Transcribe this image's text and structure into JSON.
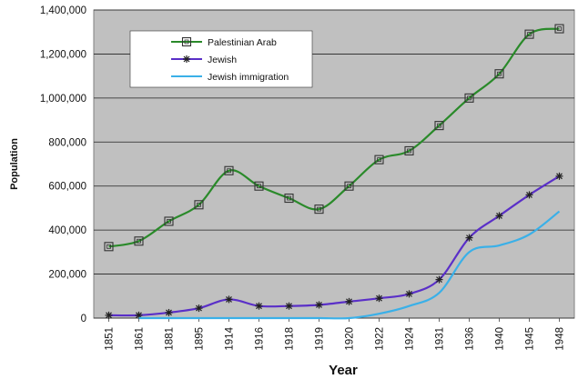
{
  "chart_data": {
    "type": "line",
    "title": "",
    "xlabel": "Year",
    "ylabel": "Population",
    "categories": [
      "1851",
      "1861",
      "1881",
      "1895",
      "1914",
      "1916",
      "1918",
      "1919",
      "1920",
      "1922",
      "1924",
      "1931",
      "1936",
      "1940",
      "1945",
      "1948"
    ],
    "ylim": [
      0,
      1400000
    ],
    "yticks": [
      "0",
      "200,000",
      "400,000",
      "600,000",
      "800,000",
      "1,000,000",
      "1,200,000",
      "1,400,000"
    ],
    "ytick_values": [
      0,
      200000,
      400000,
      600000,
      800000,
      1000000,
      1200000,
      1400000
    ],
    "grid": true,
    "legend_position": "top-left",
    "series": [
      {
        "name": "Palestinian Arab",
        "color": "#2a8a2a",
        "marker": "square",
        "values": [
          325000,
          350000,
          440000,
          515000,
          670000,
          600000,
          545000,
          495000,
          600000,
          720000,
          760000,
          875000,
          1000000,
          1110000,
          1290000,
          1315000
        ]
      },
      {
        "name": "Jewish",
        "color": "#5a2fc8",
        "marker": "star",
        "values": [
          13000,
          13000,
          25000,
          45000,
          85000,
          55000,
          55000,
          60000,
          75000,
          90000,
          110000,
          175000,
          365000,
          465000,
          560000,
          645000
        ]
      },
      {
        "name": "Jewish immigration",
        "color": "#3ab0e8",
        "marker": "none",
        "values": [
          null,
          0,
          0,
          0,
          0,
          0,
          0,
          0,
          0,
          20000,
          55000,
          115000,
          300000,
          330000,
          380000,
          485000
        ]
      }
    ]
  }
}
